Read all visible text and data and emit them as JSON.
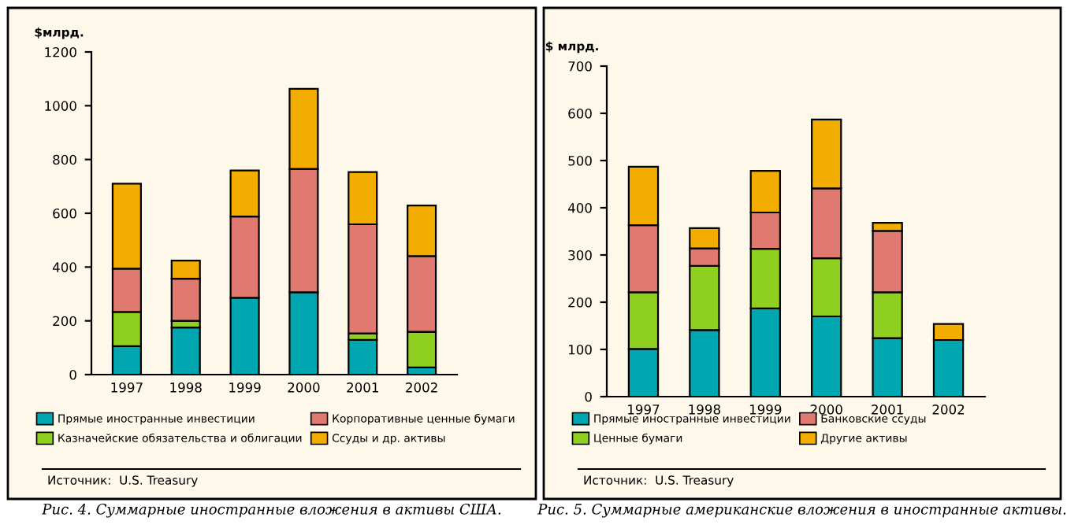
{
  "chart_data": [
    {
      "type": "bar",
      "stacked": true,
      "title": "Рис. 4. Суммарные иностранные вложения в активы США.",
      "ylabel": "$млрд.",
      "categories": [
        "1997",
        "1998",
        "1999",
        "2000",
        "2001",
        "2002"
      ],
      "series": [
        {
          "name": "Прямые иностранные инвестиции",
          "color": "#00a6b0",
          "values": [
            106,
            175,
            286,
            306,
            129,
            27
          ]
        },
        {
          "name": "Казначейские обязательства и облигации",
          "color": "#8fcf1f",
          "values": [
            127,
            25,
            0,
            0,
            24,
            132
          ]
        },
        {
          "name": "Корпоративные ценные бумаги",
          "color": "#e07a70",
          "values": [
            161,
            157,
            302,
            459,
            406,
            282
          ]
        },
        {
          "name": "Ссуды и др. активы",
          "color": "#f2ad00",
          "values": [
            316,
            67,
            171,
            298,
            194,
            188
          ]
        }
      ],
      "ylim": [
        0,
        1200
      ],
      "yticks": [
        0,
        200,
        400,
        600,
        800,
        1000,
        1200
      ],
      "grid": false,
      "legend": "bottom",
      "annotations": [
        "Источник:  U.S. Treasury"
      ]
    },
    {
      "type": "bar",
      "stacked": true,
      "title": "Рис. 5. Суммарные американские вложения в иностранные активы.",
      "ylabel": "$ млрд.",
      "categories": [
        "1997",
        "1998",
        "1999",
        "2000",
        "2001",
        "2002"
      ],
      "series": [
        {
          "name": "Прямые иностранные инвестиции",
          "color": "#00a6b0",
          "values": [
            101,
            141,
            187,
            170,
            124,
            120
          ]
        },
        {
          "name": "Ценные бумаги",
          "color": "#8fcf1f",
          "values": [
            120,
            136,
            126,
            123,
            97,
            null
          ]
        },
        {
          "name": "Банковские ссуды",
          "color": "#e07a70",
          "values": [
            142,
            37,
            77,
            148,
            130,
            null
          ]
        },
        {
          "name": "Другие активы",
          "color": "#f2ad00",
          "values": [
            124,
            43,
            88,
            146,
            17,
            34
          ]
        }
      ],
      "ylim": [
        0,
        700
      ],
      "yticks": [
        0,
        100,
        200,
        300,
        400,
        500,
        600,
        700
      ],
      "grid": false,
      "legend": "bottom",
      "annotations": [
        "Источник:  U.S. Treasury"
      ]
    }
  ]
}
